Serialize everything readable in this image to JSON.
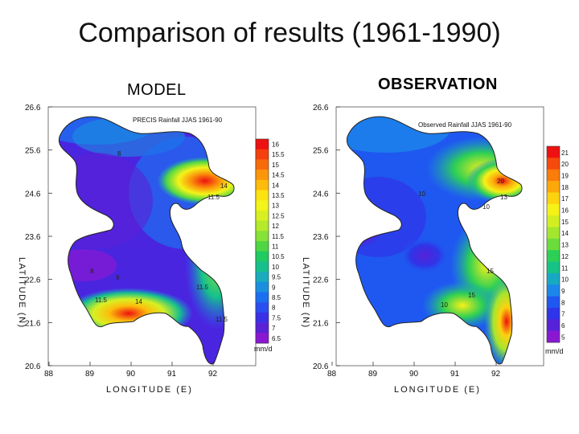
{
  "slide": {
    "title": "Comparison of results (1961-1990)",
    "model_label": "MODEL",
    "observation_label": "OBSERVATION"
  },
  "axes": {
    "ylabel": "LATITUDE (N)",
    "xlabel": "LONGITUDE (E)",
    "lat_ticks": [
      "26.6",
      "25.6",
      "24.6",
      "23.6",
      "22.6",
      "21.6",
      "20.6"
    ],
    "lon_ticks": [
      "88",
      "89",
      "90",
      "91",
      "92"
    ]
  },
  "model": {
    "map_title": "PRECIS Rainfall JJAS 1961-90",
    "colorbar": [
      "16",
      "15.5",
      "15",
      "14.5",
      "14",
      "13.5",
      "13",
      "12.5",
      "12",
      "11.5",
      "11",
      "10.5",
      "10",
      "9.5",
      "9",
      "8.5",
      "8",
      "7.5",
      "7",
      "6.5"
    ],
    "colorbar_colors": [
      "#ee1111",
      "#f53f0d",
      "#f86b0b",
      "#fb950a",
      "#fdbc0c",
      "#fde212",
      "#f3f419",
      "#d8f022",
      "#b4ea2a",
      "#86e236",
      "#4fd645",
      "#1fcb62",
      "#16c08c",
      "#18acbd",
      "#1a8fe0",
      "#1c6ff0",
      "#2a4ef0",
      "#3a30e6",
      "#5a22d6",
      "#8a18d2"
    ],
    "unit": "mm/d",
    "contour_labels": [
      "8",
      "14",
      "11.5",
      "8",
      "9",
      "11.5",
      "11.5",
      "14",
      "11.5"
    ]
  },
  "observation": {
    "map_title": "Observed Rainfall JJAS 1961-90",
    "colorbar": [
      "21",
      "20",
      "19",
      "18",
      "17",
      "16",
      "15",
      "14",
      "13",
      "12",
      "11",
      "10",
      "9",
      "8",
      "7",
      "6",
      "5"
    ],
    "colorbar_colors": [
      "#ee1111",
      "#f64a0d",
      "#fa7c0b",
      "#fca80b",
      "#fdd20e",
      "#f6f117",
      "#d2ee22",
      "#a4e62e",
      "#6cdc3c",
      "#2dcf55",
      "#17c286",
      "#18a9c2",
      "#1c86ea",
      "#1f58f0",
      "#2f35e8",
      "#5522d8",
      "#8a18d2"
    ],
    "unit": "mm/d",
    "contour_labels": [
      "10",
      "13",
      "10",
      "15",
      "15",
      "20",
      "10"
    ]
  },
  "colors": {
    "background": "#ffffff",
    "text": "#111111"
  }
}
